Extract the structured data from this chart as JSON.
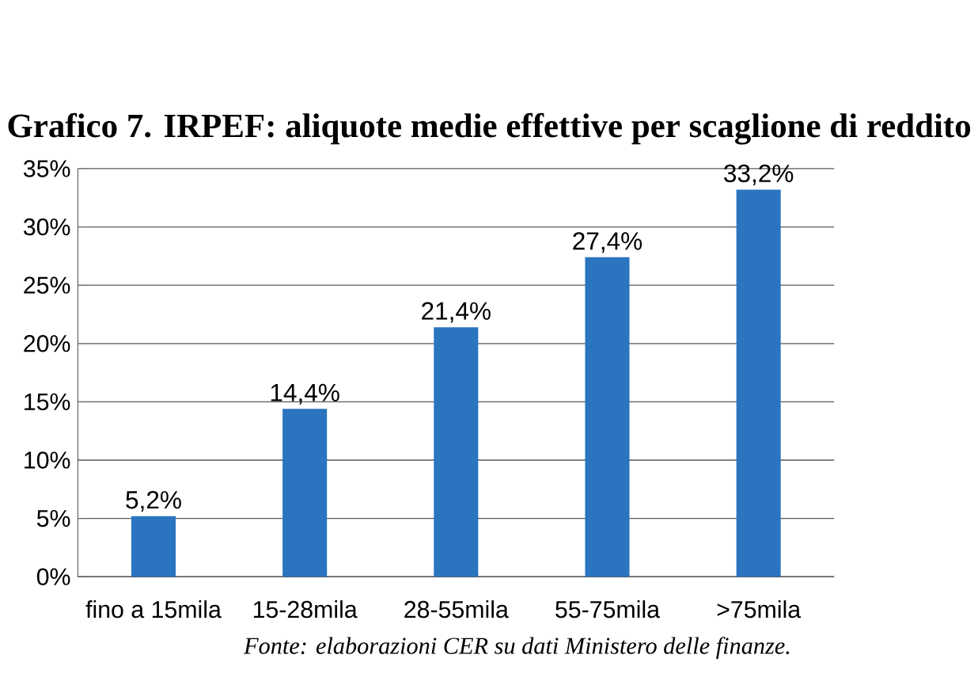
{
  "chart_data": {
    "type": "bar",
    "title": "Grafico 7. IRPEF: aliquote medie effettive per scaglione di reddito",
    "categories": [
      "fino a 15mila",
      "15-28mila",
      "28-55mila",
      "55-75mila",
      ">75mila"
    ],
    "values": [
      5.2,
      14.4,
      21.4,
      27.4,
      33.2
    ],
    "value_labels": [
      "5,2%",
      "14,4%",
      "21,4%",
      "27,4%",
      "33,2%"
    ],
    "color": "#2a74c0",
    "ylim": [
      0,
      35
    ],
    "yticks": [
      {
        "value": 0,
        "label": "0%"
      },
      {
        "value": 5,
        "label": "5%"
      },
      {
        "value": 10,
        "label": "10%"
      },
      {
        "value": 15,
        "label": "15%"
      },
      {
        "value": 20,
        "label": "20%"
      },
      {
        "value": 25,
        "label": "25%"
      },
      {
        "value": 30,
        "label": "30%"
      },
      {
        "value": 35,
        "label": "35%"
      }
    ],
    "grid": "y",
    "annotations": [
      "Fonte: elaborazioni CER su dati Ministero delle finanze."
    ]
  }
}
